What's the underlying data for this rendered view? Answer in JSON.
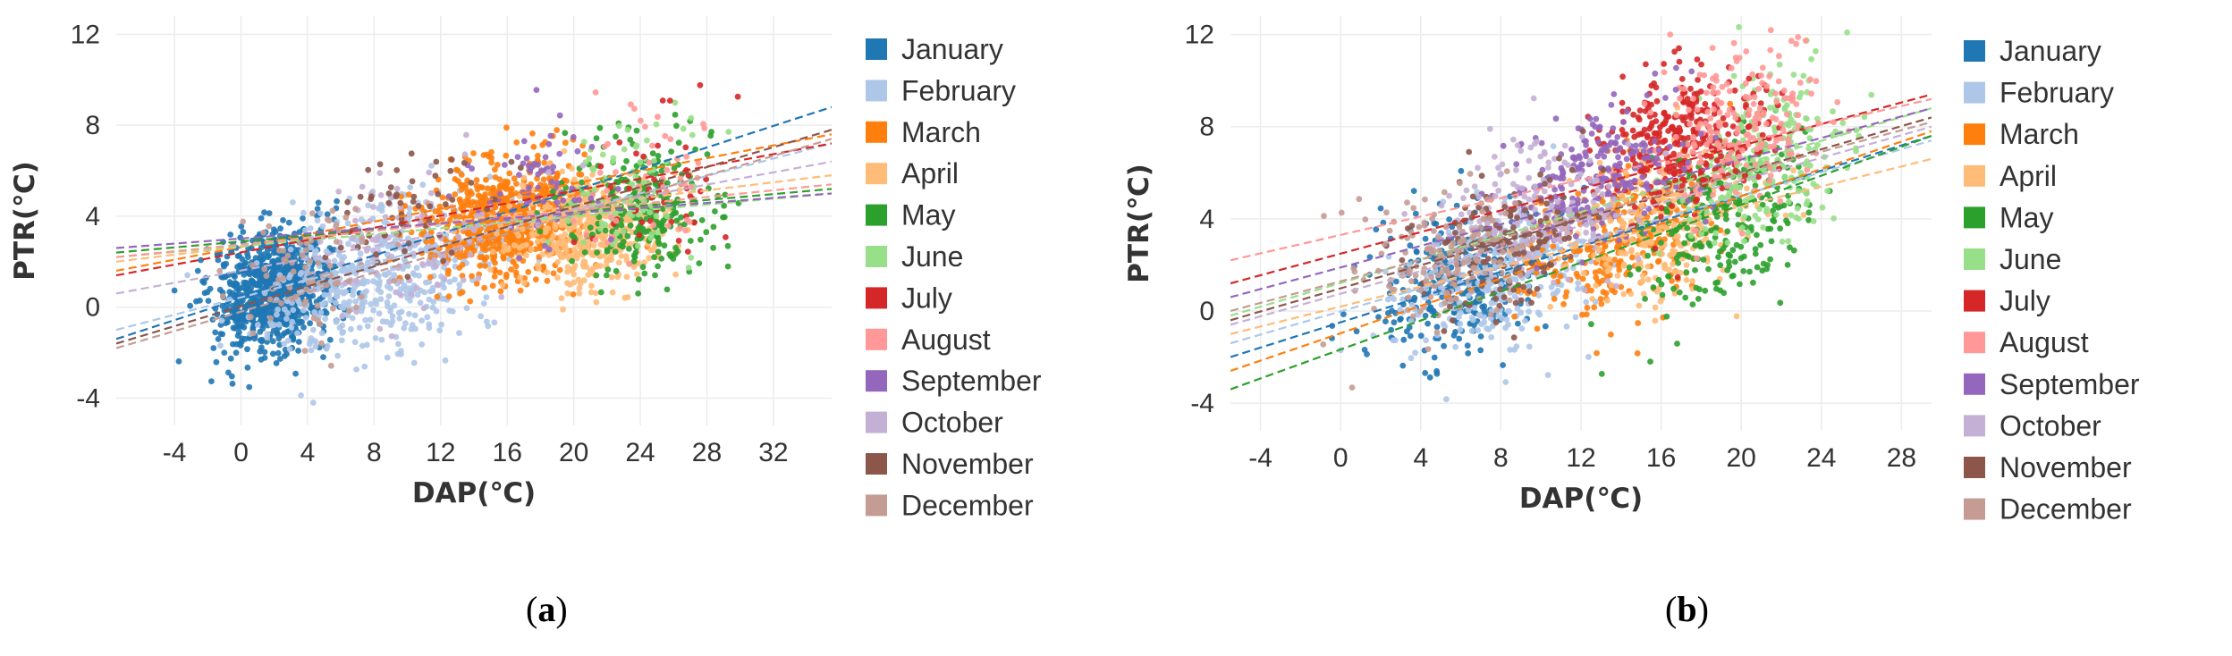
{
  "chart_data": [
    {
      "panel_label": "a",
      "type": "scatter",
      "xlabel": "DAP(℃)",
      "ylabel": "PTR(℃)",
      "xlim": [
        -7.5,
        35.5
      ],
      "ylim": [
        -5.2,
        12.8
      ],
      "x_ticks": [
        "-4",
        "0",
        "4",
        "8",
        "12",
        "16",
        "20",
        "24",
        "28",
        "32"
      ],
      "y_ticks": [
        "12",
        "8",
        "4",
        "0",
        "-4"
      ],
      "grid": true,
      "legend_position": "right",
      "series": [
        {
          "name": "January",
          "color": "#1f77b4",
          "x_range": [
            -4,
            12
          ],
          "center": [
            2,
            0.8
          ],
          "n": 900,
          "spread": [
            3.0,
            1.3
          ],
          "fit": [
            -7.5,
            -1.4,
            35.5,
            8.8
          ]
        },
        {
          "name": "February",
          "color": "#aec7e8",
          "x_range": [
            -4,
            24
          ],
          "center": [
            8,
            1.2
          ],
          "n": 500,
          "spread": [
            6.0,
            1.6
          ],
          "fit": [
            -7.5,
            -1.0,
            35.5,
            7.2
          ]
        },
        {
          "name": "March",
          "color": "#ff7f0e",
          "x_range": [
            4,
            26
          ],
          "center": [
            16,
            3.9
          ],
          "n": 700,
          "spread": [
            4.2,
            1.3
          ],
          "fit": [
            -7.5,
            1.6,
            35.5,
            7.6
          ]
        },
        {
          "name": "April",
          "color": "#ffbb78",
          "x_range": [
            12,
            30
          ],
          "center": [
            21,
            3.4
          ],
          "n": 450,
          "spread": [
            4.0,
            1.2
          ],
          "fit": [
            -7.5,
            2.0,
            35.5,
            5.8
          ]
        },
        {
          "name": "May",
          "color": "#2ca02c",
          "x_range": [
            16,
            31
          ],
          "center": [
            24,
            4.4
          ],
          "n": 260,
          "spread": [
            4.0,
            1.5
          ],
          "fit": [
            -7.5,
            2.4,
            35.5,
            5.2
          ]
        },
        {
          "name": "June",
          "color": "#98df8a",
          "x_range": [
            18,
            30
          ],
          "center": [
            23,
            5.0
          ],
          "n": 90,
          "spread": [
            3.5,
            1.6
          ],
          "fit": [
            -7.5,
            2.2,
            35.5,
            5.0
          ]
        },
        {
          "name": "July",
          "color": "#d62728",
          "x_range": [
            18,
            30
          ],
          "center": [
            25,
            5.5
          ],
          "n": 40,
          "spread": [
            3.5,
            1.6
          ],
          "fit": [
            -7.5,
            1.4,
            35.5,
            7.2
          ]
        },
        {
          "name": "August",
          "color": "#ff9896",
          "x_range": [
            18,
            30
          ],
          "center": [
            24,
            5.6
          ],
          "n": 50,
          "spread": [
            3.5,
            1.8
          ],
          "fit": [
            -7.5,
            2.2,
            35.5,
            5.4
          ]
        },
        {
          "name": "September",
          "color": "#9467bd",
          "x_range": [
            10,
            24
          ],
          "center": [
            18,
            5.5
          ],
          "n": 70,
          "spread": [
            3.5,
            1.8
          ],
          "fit": [
            -7.5,
            2.6,
            35.5,
            5.0
          ]
        },
        {
          "name": "October",
          "color": "#c5b0d5",
          "x_range": [
            0,
            24
          ],
          "center": [
            10,
            3.0
          ],
          "n": 110,
          "spread": [
            5.0,
            1.6
          ],
          "fit": [
            -7.5,
            0.6,
            35.5,
            6.4
          ]
        },
        {
          "name": "November",
          "color": "#8c564b",
          "x_range": [
            0,
            20
          ],
          "center": [
            10,
            4.2
          ],
          "n": 60,
          "spread": [
            4.0,
            1.2
          ],
          "fit": [
            -7.5,
            -1.6,
            35.5,
            7.8
          ]
        },
        {
          "name": "December",
          "color": "#c49c94",
          "x_range": [
            -4,
            16
          ],
          "center": [
            4,
            1.6
          ],
          "n": 80,
          "spread": [
            4.0,
            1.5
          ],
          "fit": [
            -7.5,
            -1.8,
            35.5,
            7.4
          ]
        }
      ]
    },
    {
      "panel_label": "b",
      "type": "scatter",
      "xlabel": "DAP(℃)",
      "ylabel": "PTR(℃)",
      "xlim": [
        -5.5,
        29.5
      ],
      "ylim": [
        -5.2,
        12.8
      ],
      "x_ticks": [
        "-4",
        "0",
        "4",
        "8",
        "12",
        "16",
        "20",
        "24",
        "28"
      ],
      "y_ticks": [
        "12",
        "8",
        "4",
        "0",
        "-4"
      ],
      "grid": true,
      "legend_position": "right",
      "series": [
        {
          "name": "January",
          "color": "#1f77b4",
          "x_range": [
            -2,
            14
          ],
          "center": [
            6,
            1.4
          ],
          "n": 320,
          "spread": [
            3.5,
            1.6
          ],
          "fit": [
            -5.5,
            -2.0,
            29.5,
            7.6
          ]
        },
        {
          "name": "February",
          "color": "#aec7e8",
          "x_range": [
            0,
            18
          ],
          "center": [
            8,
            1.6
          ],
          "n": 280,
          "spread": [
            4.0,
            1.6
          ],
          "fit": [
            -5.5,
            -1.4,
            29.5,
            7.4
          ]
        },
        {
          "name": "March",
          "color": "#ff7f0e",
          "x_range": [
            4,
            24
          ],
          "center": [
            14,
            3.2
          ],
          "n": 320,
          "spread": [
            4.0,
            1.7
          ],
          "fit": [
            -5.5,
            -2.6,
            29.5,
            7.8
          ]
        },
        {
          "name": "April",
          "color": "#ffbb78",
          "x_range": [
            8,
            26
          ],
          "center": [
            16,
            3.8
          ],
          "n": 300,
          "spread": [
            4.0,
            1.7
          ],
          "fit": [
            -5.5,
            -1.0,
            29.5,
            6.6
          ]
        },
        {
          "name": "May",
          "color": "#2ca02c",
          "x_range": [
            10,
            26
          ],
          "center": [
            19,
            3.8
          ],
          "n": 260,
          "spread": [
            3.5,
            1.8
          ],
          "fit": [
            -5.5,
            -3.4,
            29.5,
            7.6
          ]
        },
        {
          "name": "June",
          "color": "#98df8a",
          "x_range": [
            12,
            28
          ],
          "center": [
            21,
            6.4
          ],
          "n": 240,
          "spread": [
            3.5,
            1.8
          ],
          "fit": [
            -5.5,
            -0.2,
            29.5,
            8.8
          ]
        },
        {
          "name": "July",
          "color": "#d62728",
          "x_range": [
            10,
            26
          ],
          "center": [
            17,
            7.4
          ],
          "n": 320,
          "spread": [
            3.5,
            1.5
          ],
          "fit": [
            -5.5,
            1.2,
            29.5,
            9.4
          ]
        },
        {
          "name": "August",
          "color": "#ff9896",
          "x_range": [
            12,
            28
          ],
          "center": [
            20,
            8.0
          ],
          "n": 200,
          "spread": [
            3.5,
            1.6
          ],
          "fit": [
            -5.5,
            2.2,
            29.5,
            9.2
          ]
        },
        {
          "name": "September",
          "color": "#9467bd",
          "x_range": [
            6,
            22
          ],
          "center": [
            13,
            6.0
          ],
          "n": 220,
          "spread": [
            3.5,
            1.6
          ],
          "fit": [
            -5.5,
            0.6,
            29.5,
            8.8
          ]
        },
        {
          "name": "October",
          "color": "#c5b0d5",
          "x_range": [
            2,
            20
          ],
          "center": [
            10,
            4.2
          ],
          "n": 200,
          "spread": [
            4.0,
            1.6
          ],
          "fit": [
            -5.5,
            -0.6,
            29.5,
            8.0
          ]
        },
        {
          "name": "November",
          "color": "#8c564b",
          "x_range": [
            0,
            16
          ],
          "center": [
            8,
            2.8
          ],
          "n": 160,
          "spread": [
            3.5,
            1.5
          ],
          "fit": [
            -5.5,
            -0.4,
            29.5,
            8.4
          ]
        },
        {
          "name": "December",
          "color": "#c49c94",
          "x_range": [
            -2,
            14
          ],
          "center": [
            5,
            2.2
          ],
          "n": 160,
          "spread": [
            3.5,
            1.6
          ],
          "fit": [
            -5.5,
            0.0,
            29.5,
            8.2
          ]
        }
      ]
    }
  ]
}
